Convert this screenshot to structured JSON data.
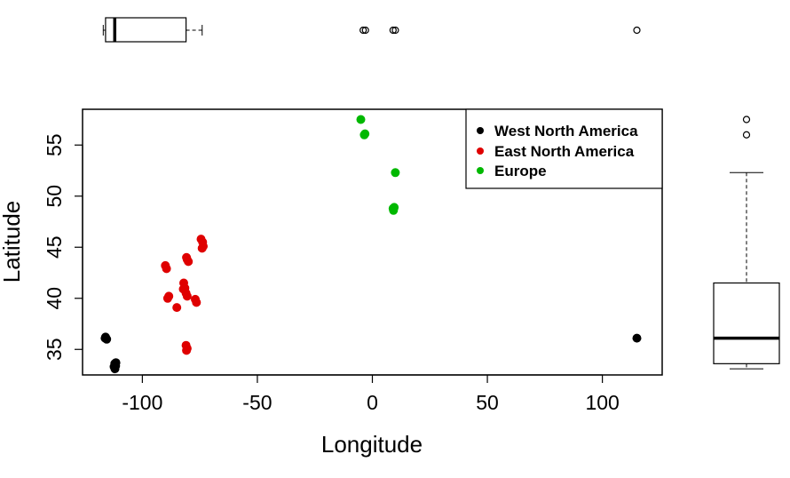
{
  "chart_data": {
    "type": "scatter",
    "xlabel": "Longitude",
    "ylabel": "Latitude",
    "xlim": [
      -126,
      126
    ],
    "ylim": [
      32.5,
      58.5
    ],
    "x_ticks": [
      -100,
      -50,
      0,
      50,
      100
    ],
    "x_tick_labels": [
      "-100",
      "-50",
      "0",
      "50",
      "100"
    ],
    "y_ticks": [
      35,
      40,
      45,
      50,
      55
    ],
    "y_tick_labels": [
      "35",
      "40",
      "45",
      "50",
      "55"
    ],
    "grid": false,
    "legend_position": "top-right",
    "marginal_plots": [
      "boxplot-top-longitude",
      "boxplot-right-latitude"
    ],
    "series": [
      {
        "name": "West North America",
        "color": "#000000",
        "points": [
          [
            -116,
            36.2
          ],
          [
            -115.5,
            36.0
          ],
          [
            -116.2,
            36.1
          ],
          [
            -112,
            33.6
          ],
          [
            -111.6,
            33.4
          ],
          [
            -112.3,
            33.3
          ],
          [
            -111.9,
            33.1
          ],
          [
            -111.5,
            33.7
          ],
          [
            115,
            36.1
          ]
        ]
      },
      {
        "name": "East North America",
        "color": "#DF0000",
        "points": [
          [
            -90,
            43.2
          ],
          [
            -89.5,
            42.9
          ],
          [
            -88.5,
            40.2
          ],
          [
            -89,
            40.0
          ],
          [
            -85,
            39.1
          ],
          [
            -82,
            41.5
          ],
          [
            -81.5,
            41.0
          ],
          [
            -82.2,
            40.9
          ],
          [
            -81,
            40.5
          ],
          [
            -80.5,
            40.2
          ],
          [
            -80.5,
            43.8
          ],
          [
            -80,
            43.6
          ],
          [
            -80.8,
            44.0
          ],
          [
            -81,
            35.4
          ],
          [
            -80.5,
            35.1
          ],
          [
            -80.8,
            34.9
          ],
          [
            -77,
            39.9
          ],
          [
            -76.5,
            39.6
          ],
          [
            -74.5,
            45.8
          ],
          [
            -73.8,
            45.5
          ],
          [
            -73.5,
            45.1
          ],
          [
            -74,
            44.9
          ]
        ]
      },
      {
        "name": "Europe",
        "color": "#00B800",
        "points": [
          [
            -5,
            57.5
          ],
          [
            -3.5,
            56.0
          ],
          [
            -3.2,
            56.1
          ],
          [
            10,
            52.3
          ],
          [
            9,
            48.8
          ],
          [
            9.2,
            48.6
          ],
          [
            9.5,
            48.9
          ]
        ]
      }
    ],
    "boxplot_longitude": {
      "whisker_low": -117,
      "q1": -116,
      "median": -112,
      "q3": -81,
      "whisker_high": -74,
      "outliers": [
        -4,
        -3,
        9,
        10,
        115
      ]
    },
    "boxplot_latitude": {
      "whisker_low": 33.1,
      "q1": 33.6,
      "median": 36.1,
      "q3": 41.5,
      "whisker_high": 52.3,
      "outliers": [
        56.0,
        57.5
      ]
    }
  }
}
